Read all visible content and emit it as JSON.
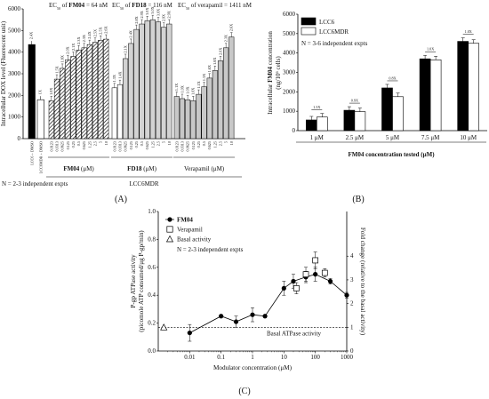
{
  "panels": [
    "(A)",
    "(B)",
    "(C)"
  ],
  "chart_data": [
    {
      "type": "bar",
      "panel": "(A)",
      "ylabel": "Intracellular DOX level (Fluorescent unit)",
      "ylim": [
        0,
        6000
      ],
      "yticks": [
        "0",
        "1000",
        "2000",
        "3000",
        "4000",
        "5000",
        "6000"
      ],
      "ec50": {
        "prefix": "EC",
        "sub": "50",
        "of": " of ",
        "FM04": "FM04",
        "FM04_val": " = 64 nM",
        "FD18": "FD18",
        "FD18_val": " = 116 nM",
        "verapamil": "verapamil = 1411 nM"
      },
      "controls": [
        {
          "category": "LCC6 + DMSO",
          "value": 4350,
          "sig": "2.4X"
        },
        {
          "category": "LCC6MDR + DMSO",
          "value": 1800,
          "sig": "1X"
        }
      ],
      "concentrations": [
        "0.0123",
        "0.0313",
        "0.0625",
        "0.125",
        "0.25",
        "0.5",
        "0.625",
        "1.25",
        "2.5",
        "5",
        "10"
      ],
      "groups": [
        {
          "name": "FM04 (μM)",
          "values": [
            1750,
            2750,
            3250,
            3650,
            3800,
            4100,
            4200,
            4350,
            4450,
            4550,
            4600
          ],
          "sig": [
            "1.0X",
            "1.5X",
            "1.8X",
            "2.0X",
            "2.1X",
            "2.3X",
            "2.3X",
            "2.4X",
            "2.5X",
            "2.5X",
            "2.6X"
          ]
        },
        {
          "name": "FD18 (μM)",
          "values": [
            2350,
            2500,
            3700,
            4400,
            5050,
            5300,
            5450,
            5500,
            5400,
            5150,
            5300
          ],
          "sig": [
            "1.3X",
            "1.4X",
            "2.1X",
            "2.4X",
            "2.8X",
            "2.9X",
            "3.0X",
            "3.0X",
            "3.0X",
            "2.9X",
            "2.9X"
          ]
        },
        {
          "name": "Verapamil (μM)",
          "values": [
            1950,
            1850,
            1800,
            1750,
            2050,
            2400,
            2800,
            3150,
            3600,
            4200,
            4700
          ],
          "sig": [
            "1.1X",
            "1.0X",
            "1.0X",
            "1.0X",
            "1.1X",
            "1.3X",
            "1.6X",
            "1.8X",
            "2.0X",
            "2.3X",
            "2.6X"
          ]
        }
      ],
      "cell_line_label": "LCC6MDR",
      "note": "N = 2-3 independent expts"
    },
    {
      "type": "bar",
      "panel": "(B)",
      "title_bold": "FM04",
      "xlabel_rest": " concentration tested (μM)",
      "ylabel_line1": "Intracellular ",
      "ylabel_bold": "FM04",
      "ylabel_rest": " concentration",
      "ylabel_line2": "(ng/10",
      "ylabel_sup": "6",
      "ylabel_end": " cells)",
      "ylim": [
        0,
        6000
      ],
      "yticks": [
        "0",
        "1000",
        "2000",
        "3000",
        "4000",
        "5000",
        "6000"
      ],
      "categories": [
        "1 μM",
        "2.5 μM",
        "5 μM",
        "7.5 μM",
        "10 μM"
      ],
      "series": [
        {
          "name": "LCC6",
          "values": [
            550,
            1050,
            2200,
            3700,
            4600
          ],
          "color": "#000000"
        },
        {
          "name": "LCC6MDR",
          "values": [
            700,
            980,
            1750,
            3650,
            4500
          ],
          "color": "#ffffff"
        }
      ],
      "ratios": [
        "1.3X",
        "0.9X",
        "0.8X",
        "1.0X",
        "1.0X"
      ],
      "note": "N = 3-6 independent expts"
    },
    {
      "type": "scatter",
      "panel": "(C)",
      "xlabel": "Modulator concentration (μM)",
      "ylabel_left": "P-gp ATPase activity",
      "ylabel_left2": "(picomole ATP consumed/μg P-gp/min)",
      "ylabel_right": "Fold change (relative to the basal activity)",
      "xscale": "log",
      "xlim": [
        0.001,
        1000
      ],
      "xticks": [
        "0.01",
        "0.1",
        "1",
        "10",
        "100",
        "1000"
      ],
      "ylim": [
        0,
        1.0
      ],
      "yticks": [
        "0.0",
        "0.2",
        "0.4",
        "0.6",
        "0.8",
        "1.0"
      ],
      "y2ticks": [
        "0",
        "1",
        "2",
        "3",
        "4"
      ],
      "series": [
        {
          "name": "FM04",
          "marker": "filled-circle",
          "x": [
            0.01,
            0.1,
            0.3,
            1,
            2.5,
            10,
            20,
            50,
            100,
            300,
            1000
          ],
          "y": [
            0.13,
            0.25,
            0.21,
            0.26,
            0.25,
            0.45,
            0.5,
            0.53,
            0.55,
            0.5,
            0.4
          ],
          "err": [
            0.06,
            0,
            0.04,
            0.05,
            0,
            0.05,
            0.05,
            0.04,
            0.05,
            0.02,
            0.02
          ]
        },
        {
          "name": "Verapamil",
          "marker": "open-square",
          "x": [
            25,
            50,
            100,
            200
          ],
          "y": [
            0.45,
            0.55,
            0.65,
            0.56
          ],
          "err": [
            0.04,
            0.05,
            0.06,
            0.03
          ]
        },
        {
          "name": "Basal activity",
          "marker": "open-triangle",
          "x": [
            0.0015
          ],
          "y": [
            0.17
          ],
          "err": [
            0
          ]
        }
      ],
      "basal_level": 0.17,
      "basal_label": "Basal ATPase activity",
      "note": "N = 2-3 independent expts"
    }
  ]
}
